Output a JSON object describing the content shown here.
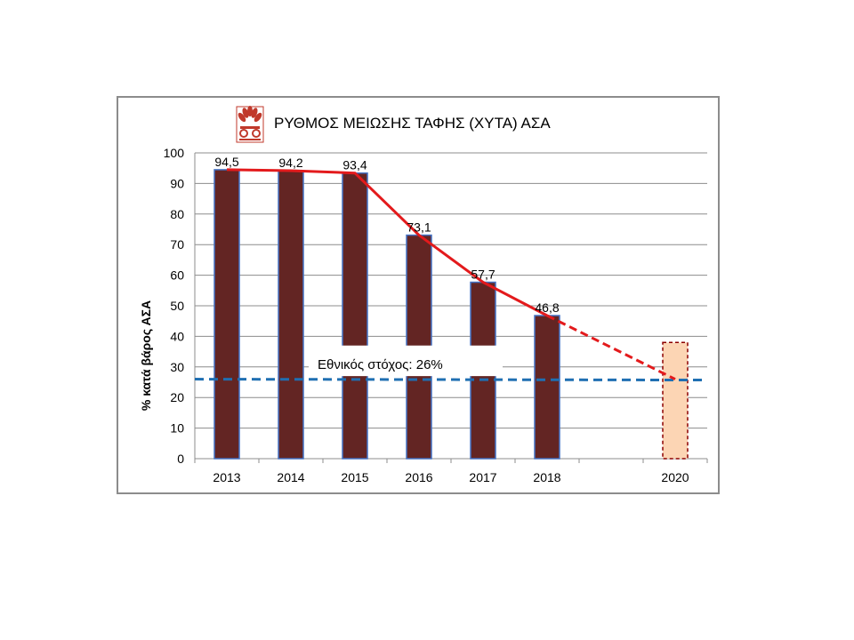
{
  "chart_data": {
    "type": "bar",
    "title": "ΡΥΘΜΟΣ ΜΕΙΩΣΗΣ ΤΑΦΗΣ (ΧΥΤΑ) ΑΣΑ",
    "ylabel": "% κατά βάρος ΑΣΑ",
    "xlabel": "",
    "ylim": [
      0,
      100
    ],
    "yticks": [
      "0",
      "10",
      "20",
      "30",
      "40",
      "50",
      "60",
      "70",
      "80",
      "90",
      "100"
    ],
    "grid": true,
    "categories": [
      "2013",
      "2014",
      "2015",
      "2016",
      "2017",
      "2018",
      "",
      "2020"
    ],
    "series": [
      {
        "kind": "bar",
        "values": [
          94.5,
          94.2,
          93.4,
          73.1,
          57.7,
          46.8,
          null,
          null
        ],
        "labels": [
          "94,5",
          "94,2",
          "93,4",
          "73,1",
          "57,7",
          "46,8",
          "",
          ""
        ],
        "color": "#632523"
      },
      {
        "kind": "bar-target",
        "category": "2020",
        "value": 38,
        "color": "#fcd5b4",
        "border_color": "#8b0000"
      },
      {
        "kind": "line",
        "x": [
          "2013",
          "2014",
          "2015",
          "2016",
          "2017",
          "2018"
        ],
        "values": [
          94.5,
          94.2,
          93.4,
          73.1,
          57.7,
          46.8
        ],
        "color": "#e31a1c"
      },
      {
        "kind": "line-dashed",
        "x": [
          "2018",
          "2020"
        ],
        "values": [
          46.8,
          26
        ],
        "color": "#e31a1c"
      }
    ],
    "reference_line": {
      "value": 26,
      "label": "Εθνικός στόχος: 26%",
      "color": "#1f6fb2"
    }
  },
  "logo": {
    "name": "logo-icon",
    "color": "#c0392b"
  }
}
